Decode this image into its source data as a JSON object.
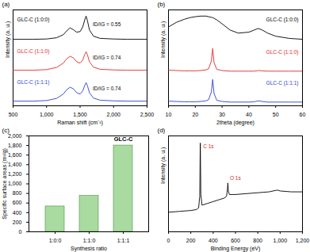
{
  "chart_data": [
    {
      "type": "line",
      "title": "(a)",
      "xlabel": "Raman shift (cm⁻¹)",
      "ylabel": "Intensity (a. u.)",
      "x": [
        500,
        800,
        1000,
        1150,
        1250,
        1300,
        1350,
        1400,
        1450,
        1500,
        1540,
        1570,
        1590,
        1610,
        1640,
        1700,
        1800,
        2000,
        2200,
        2500
      ],
      "series": [
        {
          "name": "GLC-C (1:0:0)",
          "color": "#000000",
          "values": [
            2.15,
            2.15,
            2.16,
            2.2,
            2.3,
            2.42,
            2.52,
            2.46,
            2.38,
            2.4,
            2.55,
            2.78,
            2.9,
            2.75,
            2.45,
            2.25,
            2.18,
            2.16,
            2.15,
            2.15
          ]
        },
        {
          "name": "GLC-C (1:1:0)",
          "color": "#e0282a",
          "values": [
            1.15,
            1.15,
            1.17,
            1.24,
            1.38,
            1.52,
            1.6,
            1.55,
            1.42,
            1.38,
            1.48,
            1.66,
            1.75,
            1.65,
            1.42,
            1.25,
            1.18,
            1.16,
            1.15,
            1.15
          ]
        },
        {
          "name": "GLC-C (1:1:1)",
          "color": "#2a3fd0",
          "values": [
            0.15,
            0.15,
            0.17,
            0.24,
            0.38,
            0.52,
            0.6,
            0.55,
            0.42,
            0.38,
            0.48,
            0.66,
            0.75,
            0.65,
            0.42,
            0.25,
            0.18,
            0.16,
            0.15,
            0.15
          ]
        }
      ],
      "annotations": [
        {
          "text": "ID/IG = 0.55",
          "x": 1690,
          "y": 2.62,
          "color": "#000000"
        },
        {
          "text": "ID/IG = 0.74",
          "x": 1690,
          "y": 1.55,
          "color": "#000000"
        },
        {
          "text": "ID/IG = 0.74",
          "x": 1690,
          "y": 0.55,
          "color": "#000000"
        }
      ],
      "legend": "top left",
      "xlim": [
        500,
        2500
      ],
      "xticks": [
        500,
        1000,
        1500,
        2000,
        2500
      ],
      "ylim": [
        0,
        3.1
      ],
      "yticks": [],
      "tick_labels": "x"
    },
    {
      "type": "line",
      "title": "(b)",
      "xlabel": "2theta (degree)",
      "ylabel": "Intensity (a. u.)",
      "x": [
        10,
        13,
        16,
        18,
        20,
        22,
        24,
        25,
        26,
        26.5,
        27,
        28,
        30,
        33,
        36,
        40,
        42,
        43.5,
        45,
        47,
        50,
        55,
        60
      ],
      "series": [
        {
          "name": "GLC-C (1:0:0)",
          "color": "#000000",
          "values": [
            2.55,
            2.7,
            2.8,
            2.85,
            2.88,
            2.9,
            2.9,
            2.88,
            2.86,
            2.85,
            2.83,
            2.78,
            2.65,
            2.45,
            2.35,
            2.38,
            2.45,
            2.5,
            2.45,
            2.35,
            2.25,
            2.18,
            2.15
          ]
        },
        {
          "name": "GLC-C (1:1:0)",
          "color": "#e0282a",
          "values": [
            1.15,
            1.14,
            1.13,
            1.13,
            1.13,
            1.14,
            1.16,
            1.2,
            1.45,
            1.85,
            1.4,
            1.18,
            1.14,
            1.12,
            1.12,
            1.12,
            1.12,
            1.14,
            1.13,
            1.12,
            1.12,
            1.12,
            1.12
          ]
        },
        {
          "name": "GLC-C (1:1:1)",
          "color": "#2a3fd0",
          "values": [
            0.15,
            0.14,
            0.13,
            0.13,
            0.13,
            0.14,
            0.16,
            0.2,
            0.45,
            0.85,
            0.4,
            0.18,
            0.14,
            0.12,
            0.12,
            0.12,
            0.13,
            0.16,
            0.14,
            0.12,
            0.12,
            0.12,
            0.12
          ]
        }
      ],
      "annotations": [],
      "legend": "top right",
      "xlim": [
        10,
        60
      ],
      "xticks": [
        10,
        20,
        30,
        40,
        50,
        60
      ],
      "ylim": [
        0,
        3.1
      ],
      "yticks": [],
      "tick_labels": "x"
    },
    {
      "type": "bar",
      "title": "(c)",
      "xlabel": "Synthesis ratio",
      "ylabel": "Specific surface areas (m²/g)",
      "categories": [
        "1:0:0",
        "1:1:0",
        "1:1:1"
      ],
      "values": [
        530,
        750,
        1800
      ],
      "color": "#a9dba0",
      "annotations": [
        {
          "text": "GLC-C",
          "x": "1:1:1",
          "y": 1930,
          "color": "#000000"
        }
      ],
      "ylim": [
        0,
        2000
      ],
      "yticks": [
        0,
        200,
        400,
        600,
        800,
        1000,
        1200,
        1400,
        1600,
        1800,
        2000
      ]
    },
    {
      "type": "line",
      "title": "(d)",
      "xlabel": "Binding Energy (eV)",
      "ylabel": "Intensity (a. u.)",
      "x": [
        0,
        100,
        200,
        250,
        270,
        280,
        285,
        290,
        300,
        350,
        400,
        450,
        500,
        520,
        528,
        532,
        536,
        545,
        600,
        700,
        800,
        900,
        975,
        1000,
        1100,
        1200
      ],
      "series": [
        {
          "name": "",
          "color": "#000000",
          "values": [
            0.22,
            0.23,
            0.24,
            0.25,
            0.27,
            0.4,
            1.0,
            0.42,
            0.3,
            0.32,
            0.34,
            0.36,
            0.38,
            0.4,
            0.48,
            0.55,
            0.46,
            0.42,
            0.42,
            0.43,
            0.44,
            0.45,
            0.47,
            0.46,
            0.45,
            0.45
          ]
        }
      ],
      "annotations": [
        {
          "text": "C 1s",
          "x": 310,
          "y": 0.96,
          "color": "#d62728"
        },
        {
          "text": "O 1s",
          "x": 550,
          "y": 0.6,
          "color": "#d62728"
        }
      ],
      "xlim": [
        0,
        1200
      ],
      "xticks": [
        0,
        200,
        400,
        600,
        800,
        1000,
        1200
      ],
      "ylim": [
        0,
        1.08
      ],
      "yticks": [],
      "tick_labels": "x"
    }
  ]
}
